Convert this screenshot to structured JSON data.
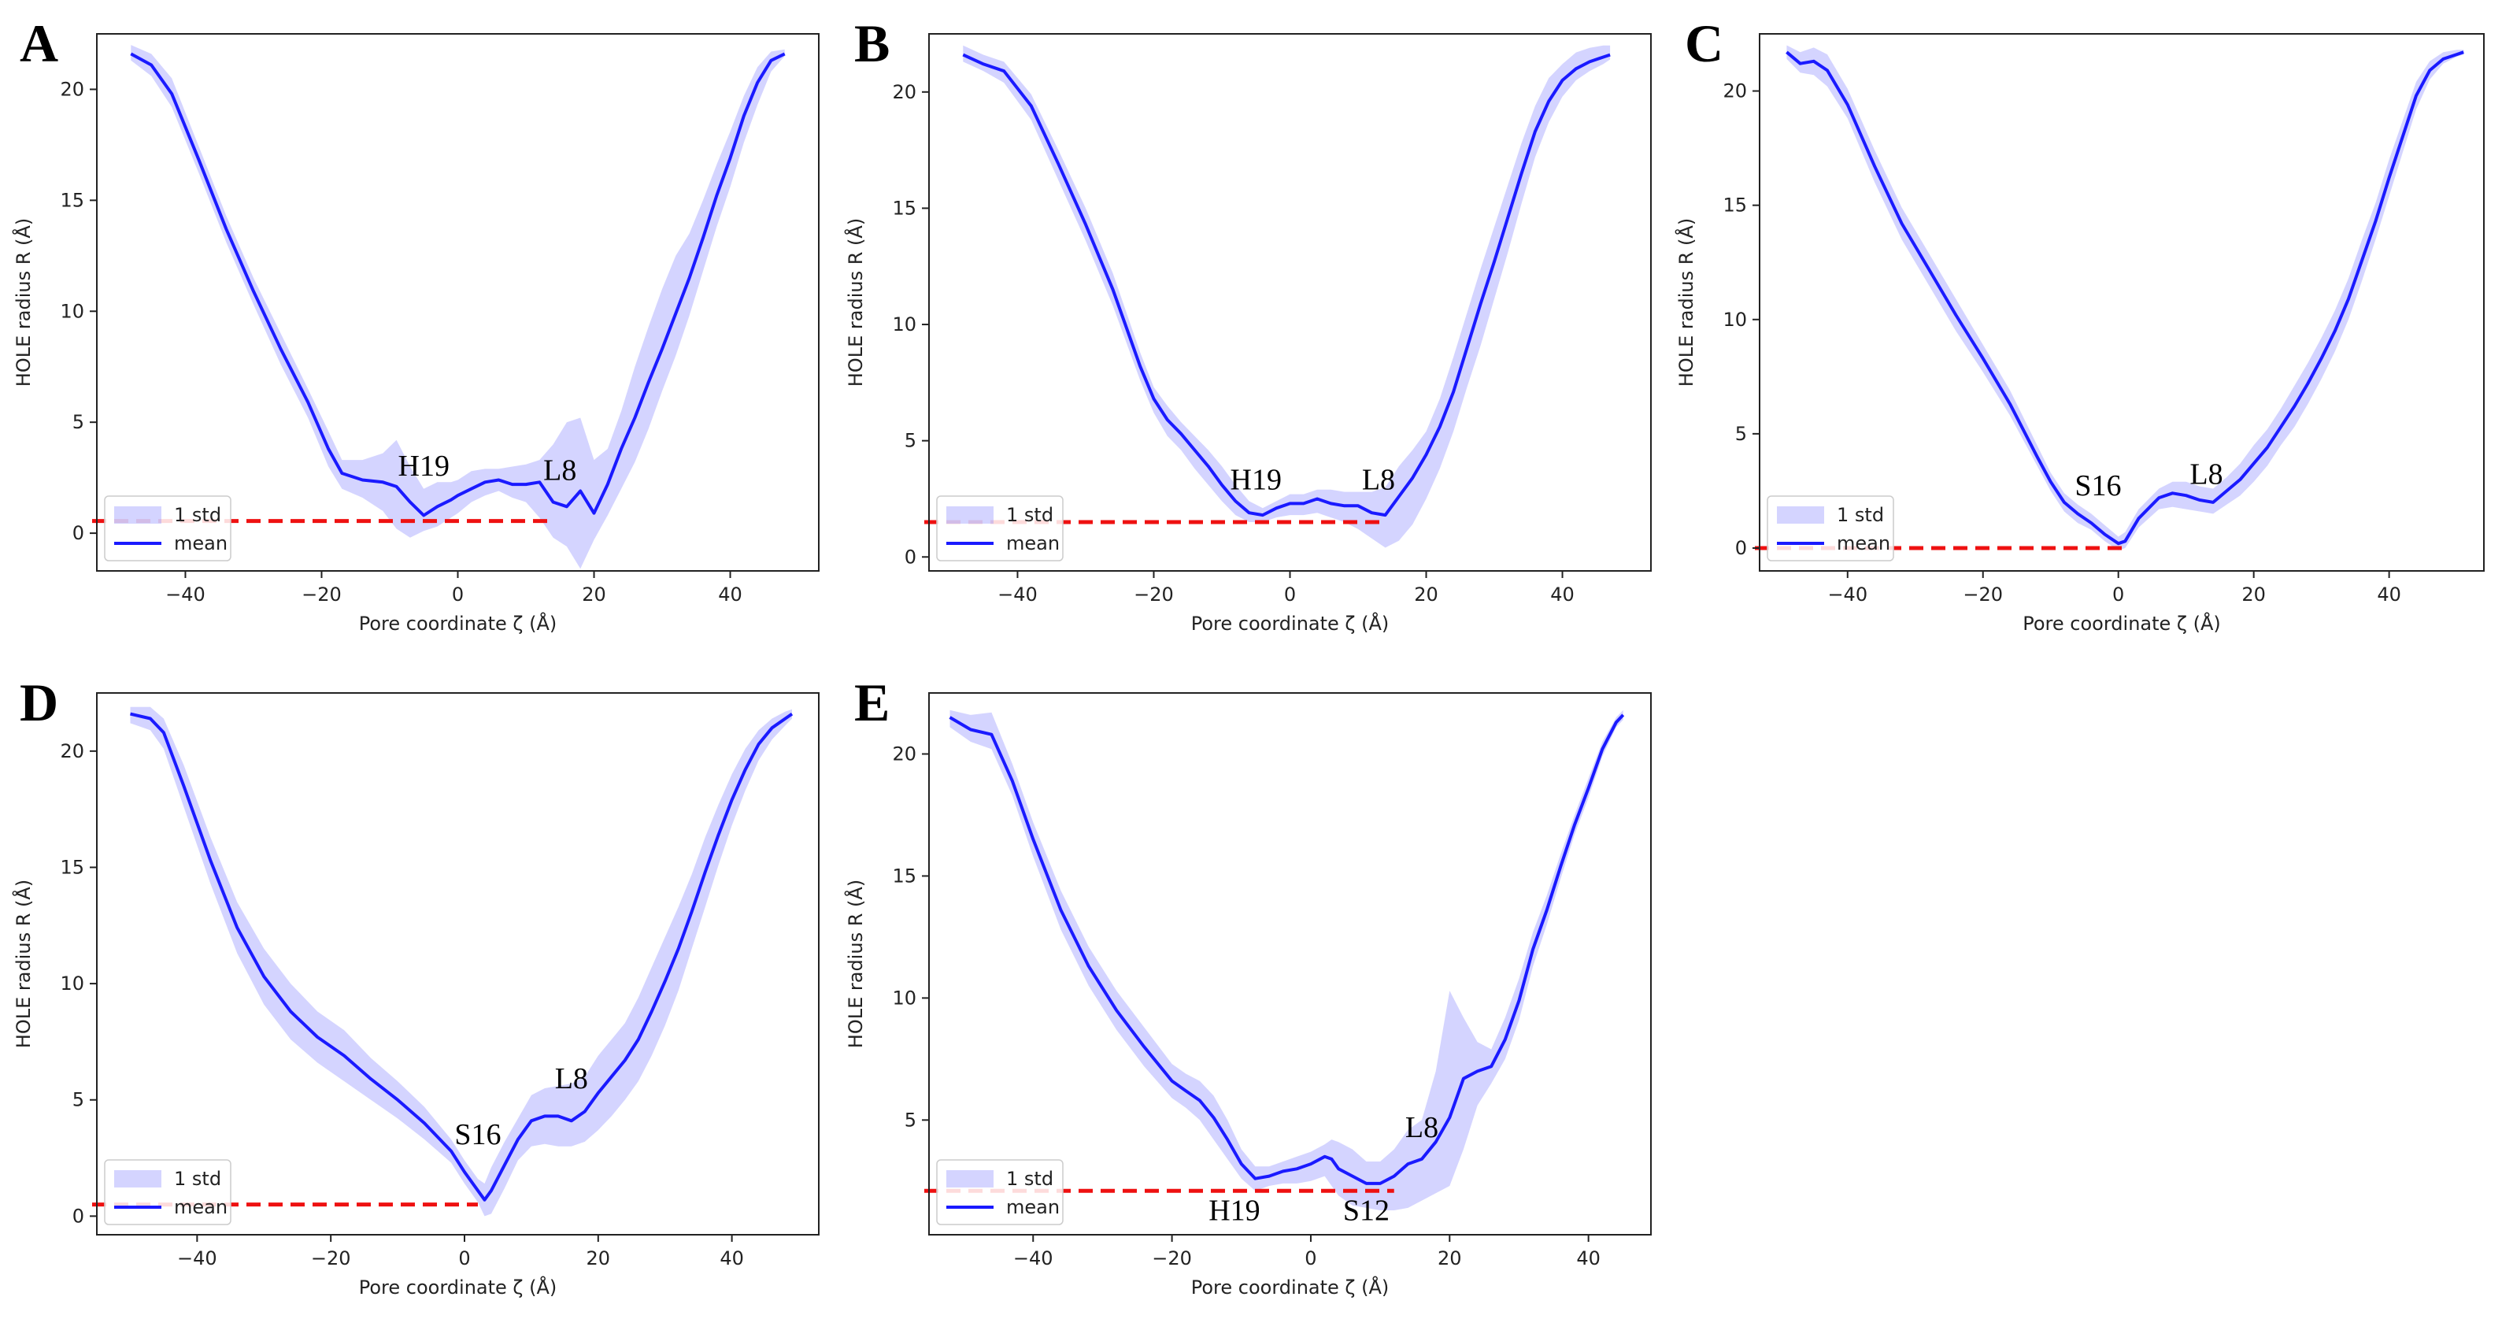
{
  "chart_data": [
    {
      "type": "line",
      "panel": "A",
      "xlabel": "Pore coordinate ζ (Å)",
      "ylabel": "HOLE radius R (Å)",
      "xlim": [
        -53,
        53
      ],
      "ylim": [
        -1.7,
        22.5
      ],
      "xticks": [
        -40,
        -20,
        0,
        20,
        40
      ],
      "yticks": [
        0,
        5,
        10,
        15,
        20
      ],
      "legend": [
        "1 std",
        "mean"
      ],
      "threshold": {
        "value": 0.55,
        "x_end": 13.5
      },
      "annotations": [
        {
          "text": "H19",
          "x": -5,
          "y": 2.6
        },
        {
          "text": "L8",
          "x": 15,
          "y": 2.4
        }
      ],
      "series": [
        {
          "name": "mean",
          "x": [
            -48,
            -45,
            -42,
            -38,
            -34,
            -30,
            -26,
            -22,
            -19,
            -17,
            -14,
            -11,
            -9,
            -7,
            -5,
            -3,
            -1,
            0,
            2,
            4,
            6,
            8,
            10,
            12,
            14,
            16,
            18,
            20,
            22,
            24,
            26,
            28,
            30,
            32,
            34,
            36,
            38,
            40,
            42,
            44,
            46,
            48
          ],
          "y": [
            21.6,
            21.1,
            19.8,
            16.8,
            13.7,
            10.9,
            8.3,
            5.9,
            3.8,
            2.7,
            2.4,
            2.3,
            2.1,
            1.4,
            0.8,
            1.2,
            1.5,
            1.7,
            2.0,
            2.3,
            2.4,
            2.2,
            2.2,
            2.3,
            1.4,
            1.2,
            1.9,
            0.9,
            2.2,
            3.8,
            5.2,
            6.8,
            8.3,
            9.9,
            11.5,
            13.3,
            15.2,
            16.9,
            18.8,
            20.3,
            21.3,
            21.6
          ],
          "lower": [
            21.3,
            20.6,
            19.2,
            16.2,
            13.1,
            10.3,
            7.6,
            5.2,
            3.0,
            2.0,
            1.6,
            1.0,
            0.2,
            -0.2,
            0.1,
            0.3,
            0.7,
            0.9,
            1.4,
            1.7,
            1.9,
            1.6,
            1.4,
            0.7,
            -0.2,
            -0.6,
            -1.6,
            -0.3,
            0.8,
            2.0,
            3.2,
            4.7,
            6.4,
            8.0,
            9.8,
            11.8,
            13.8,
            15.6,
            17.6,
            19.3,
            20.8,
            21.5
          ],
          "upper": [
            22.0,
            21.6,
            20.5,
            17.4,
            14.3,
            11.5,
            9.0,
            6.5,
            4.6,
            3.3,
            3.3,
            3.6,
            4.2,
            3.0,
            2.0,
            2.3,
            2.3,
            2.4,
            2.8,
            2.9,
            2.9,
            3.0,
            3.1,
            3.3,
            4.0,
            5.0,
            5.2,
            3.3,
            3.8,
            5.5,
            7.5,
            9.3,
            11.0,
            12.5,
            13.5,
            15.0,
            16.6,
            18.1,
            19.7,
            21.0,
            21.7,
            21.8
          ]
        }
      ]
    },
    {
      "type": "line",
      "panel": "B",
      "xlabel": "Pore coordinate ζ (Å)",
      "ylabel": "HOLE radius R (Å)",
      "xlim": [
        -53,
        53
      ],
      "ylim": [
        -0.6,
        22.5
      ],
      "xticks": [
        -40,
        -20,
        0,
        20,
        40
      ],
      "yticks": [
        0,
        5,
        10,
        15,
        20
      ],
      "legend": [
        "1 std",
        "mean"
      ],
      "threshold": {
        "value": 1.5,
        "x_end": 14
      },
      "annotations": [
        {
          "text": "H19",
          "x": -5,
          "y": 2.9
        },
        {
          "text": "L8",
          "x": 13,
          "y": 2.9
        }
      ],
      "series": [
        {
          "name": "mean",
          "x": [
            -48,
            -45,
            -42,
            -38,
            -34,
            -30,
            -26,
            -22,
            -20,
            -18,
            -16,
            -14,
            -12,
            -10,
            -8,
            -6,
            -4,
            -2,
            0,
            2,
            4,
            6,
            8,
            10,
            12,
            14,
            16,
            18,
            20,
            22,
            24,
            26,
            28,
            30,
            32,
            34,
            36,
            38,
            40,
            42,
            44,
            46,
            47
          ],
          "y": [
            21.6,
            21.2,
            20.9,
            19.4,
            16.9,
            14.3,
            11.5,
            8.2,
            6.8,
            5.9,
            5.3,
            4.6,
            3.9,
            3.1,
            2.4,
            1.9,
            1.8,
            2.1,
            2.3,
            2.3,
            2.5,
            2.3,
            2.2,
            2.2,
            1.9,
            1.8,
            2.6,
            3.4,
            4.4,
            5.6,
            7.1,
            9.0,
            10.9,
            12.7,
            14.6,
            16.5,
            18.3,
            19.6,
            20.5,
            21.0,
            21.3,
            21.5,
            21.6
          ],
          "lower": [
            21.3,
            20.9,
            20.4,
            18.8,
            16.2,
            13.6,
            10.8,
            7.6,
            6.2,
            5.2,
            4.6,
            3.8,
            3.1,
            2.4,
            1.8,
            1.5,
            1.5,
            1.7,
            1.8,
            1.8,
            1.9,
            1.7,
            1.5,
            1.2,
            0.8,
            0.4,
            0.7,
            1.4,
            2.5,
            3.8,
            5.4,
            7.3,
            9.1,
            11.1,
            13.1,
            15.2,
            17.2,
            18.7,
            19.8,
            20.5,
            20.9,
            21.2,
            21.4
          ],
          "upper": [
            22.0,
            21.6,
            21.3,
            19.9,
            17.5,
            15.0,
            12.2,
            8.8,
            7.3,
            6.5,
            5.8,
            5.2,
            4.6,
            3.9,
            3.1,
            2.4,
            2.1,
            2.4,
            2.7,
            2.7,
            2.9,
            2.9,
            2.8,
            2.8,
            2.8,
            3.0,
            3.9,
            4.6,
            5.4,
            6.8,
            8.6,
            10.5,
            12.4,
            14.2,
            16.0,
            17.8,
            19.4,
            20.6,
            21.2,
            21.7,
            21.9,
            22.0,
            22.0
          ]
        }
      ]
    },
    {
      "type": "line",
      "panel": "C",
      "xlabel": "Pore coordinate ζ (Å)",
      "ylabel": "HOLE radius R (Å)",
      "xlim": [
        -53,
        54
      ],
      "ylim": [
        -1.0,
        22.5
      ],
      "xticks": [
        -40,
        -20,
        0,
        20,
        40
      ],
      "yticks": [
        0,
        5,
        10,
        15,
        20
      ],
      "legend": [
        "1 std",
        "mean"
      ],
      "threshold": {
        "value": 0.0,
        "x_end": 1
      },
      "annotations": [
        {
          "text": "S16",
          "x": -3,
          "y": 2.3
        },
        {
          "text": "L8",
          "x": 13,
          "y": 2.8
        }
      ],
      "series": [
        {
          "name": "mean",
          "x": [
            -49,
            -47,
            -45,
            -43,
            -40,
            -36,
            -32,
            -28,
            -24,
            -20,
            -16,
            -12,
            -10,
            -8,
            -6,
            -4,
            -2,
            0,
            1,
            3,
            6,
            8,
            10,
            12,
            14,
            16,
            18,
            20,
            22,
            24,
            26,
            28,
            30,
            32,
            34,
            36,
            38,
            40,
            42,
            44,
            46,
            48,
            50,
            51
          ],
          "y": [
            21.7,
            21.2,
            21.3,
            20.9,
            19.4,
            16.7,
            14.2,
            12.2,
            10.2,
            8.3,
            6.3,
            4.0,
            2.9,
            2.0,
            1.5,
            1.1,
            0.6,
            0.2,
            0.3,
            1.3,
            2.2,
            2.4,
            2.3,
            2.1,
            2.0,
            2.5,
            3.0,
            3.7,
            4.4,
            5.3,
            6.2,
            7.2,
            8.3,
            9.5,
            10.9,
            12.6,
            14.3,
            16.2,
            18.0,
            19.8,
            20.9,
            21.4,
            21.6,
            21.7
          ],
          "lower": [
            21.4,
            20.8,
            20.7,
            20.2,
            18.8,
            16.0,
            13.5,
            11.5,
            9.5,
            7.7,
            5.8,
            3.6,
            2.5,
            1.6,
            1.1,
            0.8,
            0.3,
            -0.1,
            0.0,
            0.9,
            1.7,
            1.8,
            1.7,
            1.6,
            1.5,
            1.9,
            2.3,
            2.9,
            3.6,
            4.5,
            5.3,
            6.3,
            7.4,
            8.6,
            10.0,
            11.7,
            13.5,
            15.4,
            17.3,
            19.2,
            20.5,
            21.2,
            21.5,
            21.6
          ],
          "upper": [
            22.0,
            21.7,
            21.9,
            21.6,
            20.1,
            17.4,
            14.9,
            12.9,
            10.9,
            8.9,
            6.9,
            4.5,
            3.3,
            2.4,
            1.9,
            1.5,
            1.0,
            0.5,
            0.7,
            1.7,
            2.6,
            2.9,
            2.9,
            2.7,
            2.6,
            3.1,
            3.7,
            4.5,
            5.2,
            6.1,
            7.1,
            8.1,
            9.2,
            10.4,
            11.8,
            13.5,
            15.1,
            17.0,
            18.7,
            20.4,
            21.3,
            21.7,
            21.8,
            21.8
          ]
        }
      ]
    },
    {
      "type": "line",
      "panel": "D",
      "xlabel": "Pore coordinate ζ (Å)",
      "ylabel": "HOLE radius R (Å)",
      "xlim": [
        -55,
        53
      ],
      "ylim": [
        -0.8,
        22.5
      ],
      "xticks": [
        -40,
        -20,
        0,
        20,
        40
      ],
      "yticks": [
        0,
        5,
        10,
        15,
        20
      ],
      "legend": [
        "1 std",
        "mean"
      ],
      "threshold": {
        "value": 0.5,
        "x_end": 2
      },
      "annotations": [
        {
          "text": "S16",
          "x": 2,
          "y": 3.1
        },
        {
          "text": "L8",
          "x": 16,
          "y": 5.5
        }
      ],
      "series": [
        {
          "name": "mean",
          "x": [
            -50,
            -47,
            -45,
            -42,
            -38,
            -34,
            -30,
            -26,
            -22,
            -18,
            -14,
            -10,
            -6,
            -2,
            0,
            2,
            3,
            4,
            6,
            8,
            10,
            12,
            14,
            16,
            18,
            20,
            22,
            24,
            26,
            28,
            30,
            32,
            34,
            36,
            38,
            40,
            42,
            44,
            46,
            48,
            49
          ],
          "y": [
            21.6,
            21.4,
            20.8,
            18.5,
            15.3,
            12.4,
            10.3,
            8.8,
            7.7,
            6.9,
            5.9,
            5.0,
            4.0,
            2.8,
            1.9,
            1.1,
            0.7,
            1.1,
            2.2,
            3.3,
            4.1,
            4.3,
            4.3,
            4.1,
            4.5,
            5.3,
            6.0,
            6.7,
            7.6,
            8.8,
            10.1,
            11.5,
            13.1,
            14.8,
            16.4,
            17.9,
            19.2,
            20.3,
            21.0,
            21.4,
            21.6
          ],
          "lower": [
            21.2,
            20.9,
            20.1,
            17.6,
            14.3,
            11.3,
            9.1,
            7.6,
            6.6,
            5.8,
            5.0,
            4.2,
            3.3,
            2.3,
            1.4,
            0.6,
            0.0,
            0.1,
            1.2,
            2.4,
            3.0,
            3.1,
            3.0,
            3.0,
            3.2,
            3.7,
            4.3,
            5.0,
            5.8,
            6.9,
            8.2,
            9.7,
            11.5,
            13.3,
            15.1,
            16.8,
            18.3,
            19.6,
            20.5,
            21.1,
            21.4
          ],
          "upper": [
            21.9,
            21.9,
            21.4,
            19.4,
            16.3,
            13.5,
            11.5,
            10.0,
            8.8,
            8.0,
            6.8,
            5.8,
            4.7,
            3.3,
            2.4,
            1.6,
            1.4,
            2.1,
            3.2,
            4.2,
            5.2,
            5.5,
            5.6,
            5.7,
            6.0,
            6.9,
            7.6,
            8.3,
            9.4,
            10.7,
            12.0,
            13.3,
            14.7,
            16.3,
            17.7,
            19.0,
            20.1,
            20.9,
            21.4,
            21.7,
            21.8
          ]
        }
      ]
    },
    {
      "type": "line",
      "panel": "E",
      "xlabel": "Pore coordinate ζ (Å)",
      "ylabel": "HOLE radius R (Å)",
      "xlim": [
        -55,
        49
      ],
      "ylim": [
        0.3,
        22.5
      ],
      "xticks": [
        -40,
        -20,
        0,
        20,
        40
      ],
      "yticks": [
        5,
        10,
        15,
        20
      ],
      "legend": [
        "1 std",
        "mean"
      ],
      "threshold": {
        "value": 2.1,
        "x_end": 12
      },
      "annotations": [
        {
          "text": "H19",
          "x": -11,
          "y": 0.9
        },
        {
          "text": "S12",
          "x": 8,
          "y": 0.9
        },
        {
          "text": "L8",
          "x": 16,
          "y": 4.3
        }
      ],
      "series": [
        {
          "name": "mean",
          "x": [
            -52,
            -49,
            -46,
            -43,
            -40,
            -36,
            -32,
            -28,
            -24,
            -20,
            -18,
            -16,
            -14,
            -12,
            -10,
            -8,
            -6,
            -4,
            -2,
            0,
            2,
            3,
            4,
            6,
            8,
            10,
            12,
            14,
            16,
            18,
            20,
            22,
            24,
            26,
            28,
            30,
            32,
            34,
            36,
            38,
            40,
            42,
            44,
            45
          ],
          "y": [
            21.5,
            21.0,
            20.8,
            18.9,
            16.5,
            13.6,
            11.3,
            9.5,
            8.0,
            6.6,
            6.2,
            5.8,
            5.1,
            4.2,
            3.2,
            2.6,
            2.7,
            2.9,
            3.0,
            3.2,
            3.5,
            3.4,
            3.0,
            2.7,
            2.4,
            2.4,
            2.7,
            3.2,
            3.4,
            4.1,
            5.1,
            6.7,
            7.0,
            7.2,
            8.3,
            9.9,
            12.0,
            13.6,
            15.4,
            17.1,
            18.6,
            20.2,
            21.3,
            21.6
          ],
          "lower": [
            21.1,
            20.5,
            20.2,
            18.3,
            15.8,
            12.8,
            10.5,
            8.7,
            7.2,
            5.9,
            5.5,
            5.0,
            4.2,
            3.4,
            2.6,
            2.1,
            2.3,
            2.4,
            2.4,
            2.5,
            2.7,
            2.3,
            1.9,
            1.5,
            1.4,
            1.3,
            1.3,
            1.4,
            1.7,
            2.0,
            2.3,
            3.8,
            5.6,
            6.5,
            7.5,
            9.1,
            11.3,
            13.0,
            14.9,
            16.7,
            18.2,
            19.9,
            21.1,
            21.4
          ],
          "upper": [
            21.8,
            21.6,
            21.7,
            19.6,
            17.2,
            14.4,
            12.1,
            10.3,
            8.8,
            7.3,
            6.9,
            6.6,
            6.0,
            5.0,
            3.8,
            3.1,
            3.1,
            3.3,
            3.5,
            3.7,
            4.0,
            4.2,
            4.1,
            3.8,
            3.3,
            3.3,
            3.8,
            4.6,
            5.0,
            7.0,
            10.3,
            9.2,
            8.2,
            7.9,
            9.2,
            10.8,
            12.7,
            14.2,
            15.9,
            17.5,
            19.0,
            20.5,
            21.5,
            21.8
          ]
        }
      ]
    }
  ]
}
